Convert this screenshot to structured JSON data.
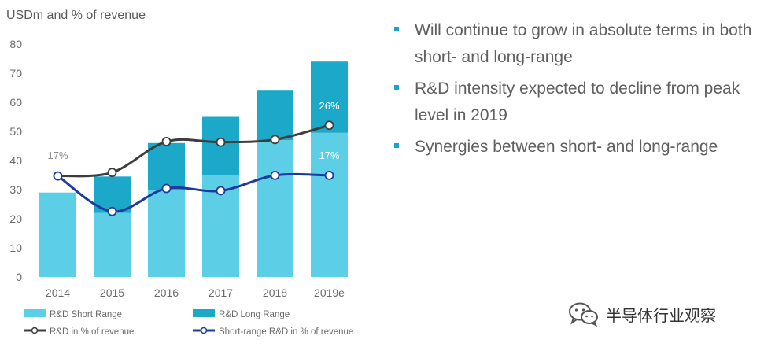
{
  "chart_data": {
    "type": "bar",
    "title": "USDm and % of revenue",
    "categories": [
      "2014",
      "2015",
      "2016",
      "2017",
      "2018",
      "2019e"
    ],
    "yticks": [
      0,
      10,
      20,
      30,
      40,
      50,
      60,
      70,
      80
    ],
    "ylim": [
      0,
      80
    ],
    "stacked": true,
    "grid": false,
    "colors": {
      "short": "#5ccfe6",
      "long": "#1ba8c9",
      "rd": "#3d3d3d",
      "short_line": "#1d3a9e"
    },
    "series": [
      {
        "name": "R&D Short Range",
        "kind": "bar",
        "values": [
          29,
          22,
          30,
          35,
          47,
          49.5
        ]
      },
      {
        "name": "R&D Long Range",
        "kind": "bar",
        "values": [
          0,
          12.5,
          16,
          20,
          17,
          24.5
        ]
      },
      {
        "name": "R&D in % of revenue",
        "kind": "line",
        "values": [
          34.7,
          35.9,
          46.5,
          46.3,
          47.2,
          52.1
        ]
      },
      {
        "name": "Short-range R&D in % of revenue",
        "kind": "line",
        "values": [
          34.7,
          22.5,
          30.4,
          29.6,
          34.9,
          34.9
        ]
      }
    ],
    "annotations": [
      {
        "text": "17%",
        "x": "2014",
        "y": 40.5
      },
      {
        "text": "26%",
        "x": "2019e",
        "y": 57.6
      },
      {
        "text": "17%",
        "x": "2019e",
        "y": 40.5
      }
    ],
    "legend": [
      {
        "label": "R&D Short Range",
        "kind": "box",
        "color": "#5ccfe6"
      },
      {
        "label": "R&D Long Range",
        "kind": "box",
        "color": "#1ba8c9"
      },
      {
        "label": "R&D in % of revenue",
        "kind": "line",
        "color": "#3d3d3d"
      },
      {
        "label": "Short-range R&D in % of revenue",
        "kind": "line",
        "color": "#1d3a9e"
      }
    ],
    "legend_position": "bottom"
  },
  "bullets": [
    "Will continue to grow in absolute terms in both short- and long-range",
    "R&D intensity expected to decline from peak level in 2019",
    "Synergies between short- and long-range"
  ],
  "watermark": {
    "text": "半导体行业观察",
    "icon": "wechat-icon"
  }
}
